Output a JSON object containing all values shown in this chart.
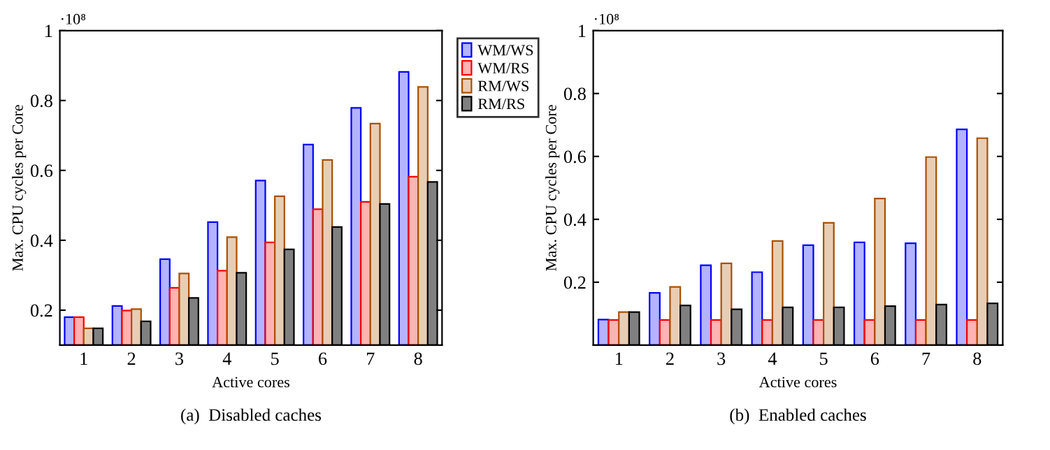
{
  "chart_data": [
    {
      "type": "bar",
      "xlabel": "Active cores",
      "ylabel": "Max. CPU cycles per Core",
      "categories": [
        "1",
        "2",
        "3",
        "4",
        "5",
        "6",
        "7",
        "8"
      ],
      "ylim": [
        0.1,
        1
      ],
      "yticks": [
        0.2,
        0.4,
        0.6,
        0.8,
        1
      ],
      "legend": "right",
      "grid": false,
      "annotations": [
        "·10⁸",
        "(a)  Disabled caches"
      ],
      "series": [
        {
          "name": "WM/WS",
          "color": "#b3b3ff",
          "values": [
            0.18,
            0.212,
            0.346,
            0.452,
            0.571,
            0.674,
            0.779,
            0.882
          ]
        },
        {
          "name": "WM/RS",
          "color": "#ffb3b3",
          "values": [
            0.18,
            0.199,
            0.264,
            0.313,
            0.394,
            0.489,
            0.51,
            0.582
          ]
        },
        {
          "name": "RM/WS",
          "color": "#e8cdb5",
          "values": [
            0.148,
            0.203,
            0.305,
            0.409,
            0.526,
            0.63,
            0.734,
            0.839
          ]
        },
        {
          "name": "RM/RS",
          "color": "#808080",
          "values": [
            0.148,
            0.168,
            0.235,
            0.307,
            0.374,
            0.438,
            0.504,
            0.567
          ]
        }
      ]
    },
    {
      "type": "bar",
      "xlabel": "Active cores",
      "ylabel": "Max. CPU cycles per Core",
      "categories": [
        "1",
        "2",
        "3",
        "4",
        "5",
        "6",
        "7",
        "8"
      ],
      "ylim": [
        0,
        1
      ],
      "yticks": [
        {
          "value": 0,
          "label": null
        },
        0.2,
        0.4,
        0.6,
        0.8,
        1
      ],
      "grid": false,
      "annotations": [
        "·10⁸",
        "(b)  Enabled caches"
      ],
      "series": [
        {
          "color": "#b3b3ff",
          "values": [
            0.081,
            0.166,
            0.254,
            0.232,
            0.318,
            0.327,
            0.324,
            0.686
          ]
        },
        {
          "color": "#ffb3b3",
          "values": [
            0.08,
            0.08,
            0.08,
            0.08,
            0.08,
            0.08,
            0.08,
            0.08
          ]
        },
        {
          "color": "#e8cdb5",
          "values": [
            0.105,
            0.185,
            0.26,
            0.331,
            0.389,
            0.466,
            0.598,
            0.658
          ]
        },
        {
          "color": "#808080",
          "values": [
            0.105,
            0.126,
            0.114,
            0.12,
            0.12,
            0.124,
            0.129,
            0.133
          ]
        }
      ]
    }
  ]
}
